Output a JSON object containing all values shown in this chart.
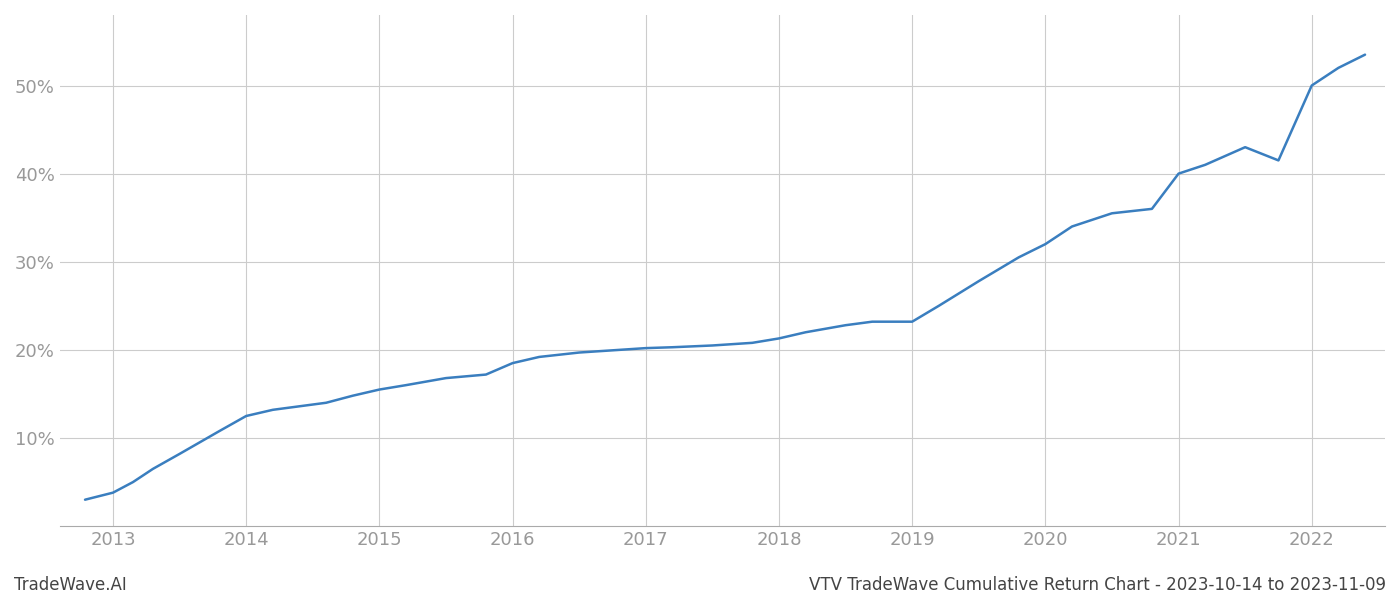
{
  "title": "VTV TradeWave Cumulative Return Chart - 2023-10-14 to 2023-11-09",
  "watermark": "TradeWave.AI",
  "line_color": "#3a7ebf",
  "line_width": 1.8,
  "background_color": "#ffffff",
  "grid_color": "#cccccc",
  "tick_color": "#999999",
  "x_years": [
    2013,
    2014,
    2015,
    2016,
    2017,
    2018,
    2019,
    2020,
    2021,
    2022
  ],
  "y_ticks": [
    0.1,
    0.2,
    0.3,
    0.4,
    0.5
  ],
  "y_tick_labels": [
    "10%",
    "20%",
    "30%",
    "40%",
    "50%"
  ],
  "data_x": [
    2012.79,
    2013.0,
    2013.15,
    2013.3,
    2013.5,
    2013.65,
    2013.8,
    2014.0,
    2014.2,
    2014.4,
    2014.6,
    2014.8,
    2015.0,
    2015.2,
    2015.5,
    2015.8,
    2016.0,
    2016.2,
    2016.5,
    2016.8,
    2017.0,
    2017.2,
    2017.5,
    2017.8,
    2018.0,
    2018.2,
    2018.5,
    2018.7,
    2019.0,
    2019.2,
    2019.5,
    2019.8,
    2020.0,
    2020.2,
    2020.5,
    2020.8,
    2021.0,
    2021.2,
    2021.5,
    2021.75,
    2022.0,
    2022.2,
    2022.4
  ],
  "data_y": [
    0.03,
    0.038,
    0.05,
    0.065,
    0.082,
    0.095,
    0.108,
    0.125,
    0.132,
    0.136,
    0.14,
    0.148,
    0.155,
    0.16,
    0.168,
    0.172,
    0.185,
    0.192,
    0.197,
    0.2,
    0.202,
    0.203,
    0.205,
    0.208,
    0.213,
    0.22,
    0.228,
    0.232,
    0.232,
    0.25,
    0.278,
    0.305,
    0.32,
    0.34,
    0.355,
    0.36,
    0.4,
    0.41,
    0.43,
    0.415,
    0.5,
    0.52,
    0.535
  ],
  "xlim": [
    2012.6,
    2022.55
  ],
  "ylim": [
    0.0,
    0.58
  ],
  "figsize": [
    14.0,
    6.0
  ],
  "dpi": 100,
  "title_fontsize": 12,
  "watermark_fontsize": 12,
  "tick_fontsize": 13
}
